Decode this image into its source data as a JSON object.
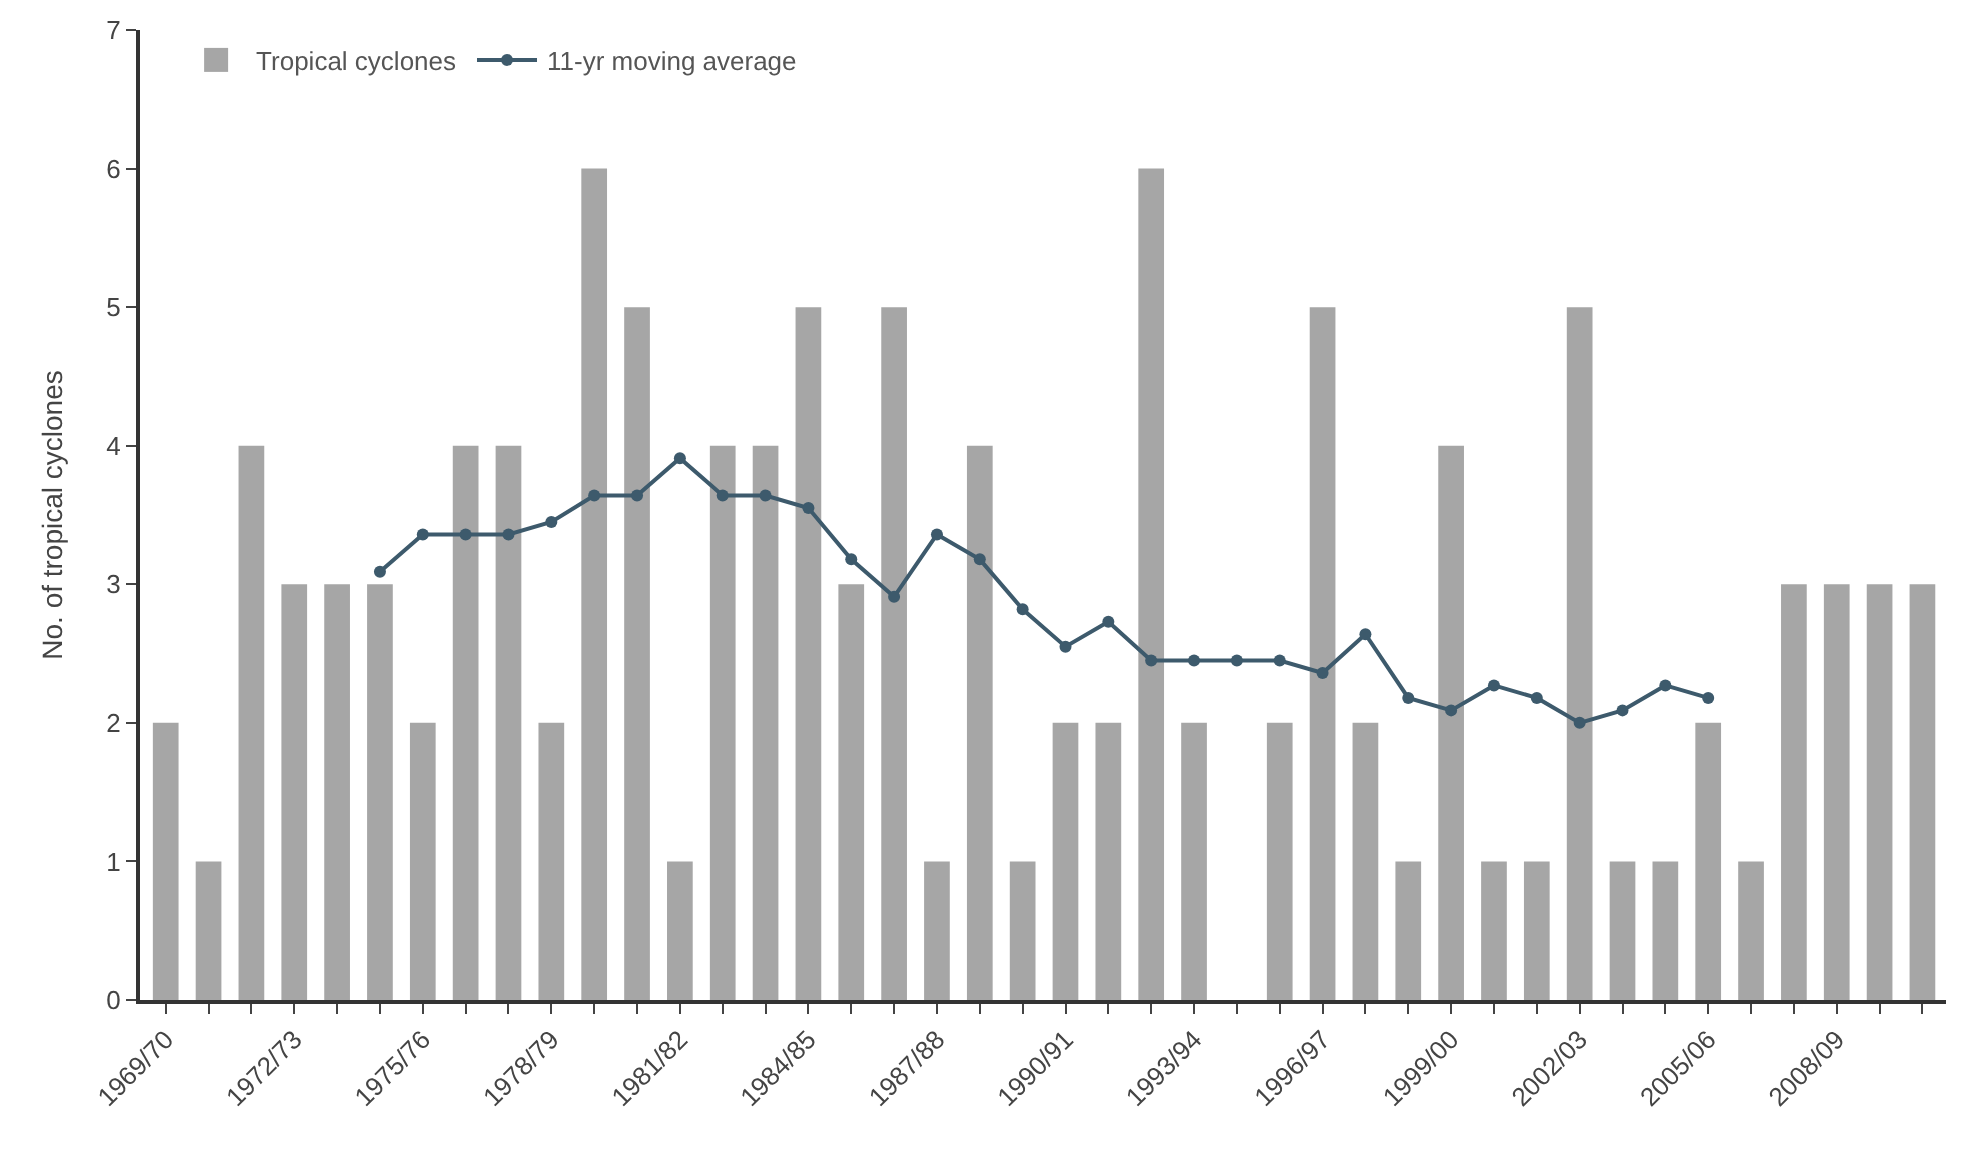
{
  "chart_data": {
    "type": "bar",
    "ylabel": "No. of tropical cyclones",
    "categories": [
      "1969/70",
      null,
      null,
      "1972/73",
      null,
      null,
      "1975/76",
      null,
      null,
      "1978/79",
      null,
      null,
      "1981/82",
      null,
      null,
      "1984/85",
      null,
      null,
      "1987/88",
      null,
      null,
      "1990/91",
      null,
      null,
      "1993/94",
      null,
      null,
      "1996/97",
      null,
      null,
      "1999/00",
      null,
      null,
      "2002/03",
      null,
      null,
      "2005/06",
      null,
      null,
      "2008/09",
      null,
      null
    ],
    "series": [
      {
        "name": "Tropical cyclones",
        "color": "#a6a6a6",
        "values": [
          2,
          1,
          4,
          3,
          3,
          3,
          2,
          4,
          4,
          2,
          6,
          5,
          1,
          4,
          4,
          5,
          3,
          5,
          1,
          4,
          1,
          2,
          2,
          6,
          2,
          0,
          2,
          5,
          2,
          1,
          4,
          1,
          1,
          5,
          1,
          1,
          2,
          1,
          3,
          3,
          3,
          3
        ]
      },
      {
        "name": "11-yr moving average",
        "type": "line",
        "color": "#3d5a6c",
        "marker": "circle",
        "values": [
          null,
          null,
          null,
          null,
          null,
          3.09,
          3.36,
          3.36,
          3.36,
          3.45,
          3.64,
          3.64,
          3.91,
          3.64,
          3.64,
          3.55,
          3.18,
          2.91,
          3.36,
          3.18,
          2.82,
          2.55,
          2.73,
          2.45,
          2.45,
          2.45,
          2.45,
          2.36,
          2.64,
          2.18,
          2.09,
          2.27,
          2.18,
          2.0,
          2.09,
          2.27,
          2.18,
          null,
          null,
          null,
          null,
          null
        ]
      }
    ],
    "ylim": [
      0,
      7
    ],
    "yticks": [
      0,
      1,
      2,
      3,
      4,
      5,
      6,
      7
    ],
    "grid": false,
    "legend": "top left"
  }
}
